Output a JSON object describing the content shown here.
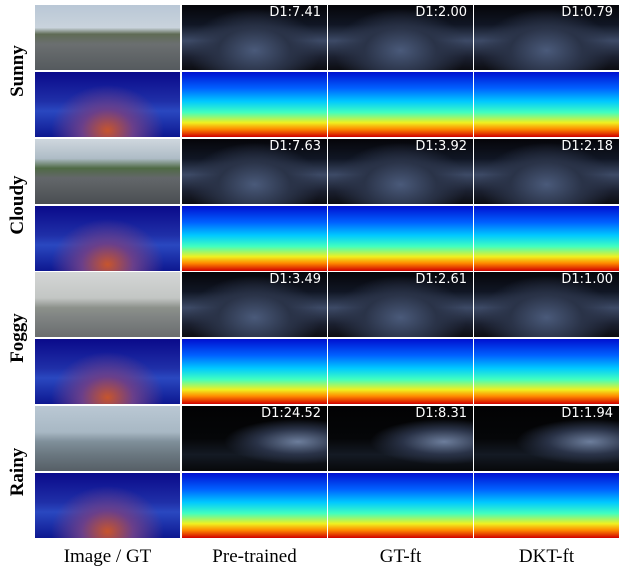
{
  "rows": [
    {
      "condition": "Sunny",
      "d1": [
        "D1:7.41",
        "D1:2.00",
        "D1:0.79"
      ]
    },
    {
      "condition": "Cloudy",
      "d1": [
        "D1:7.63",
        "D1:3.92",
        "D1:2.18"
      ]
    },
    {
      "condition": "Foggy",
      "d1": [
        "D1:3.49",
        "D1:2.61",
        "D1:1.00"
      ]
    },
    {
      "condition": "Rainy",
      "d1": [
        "D1:24.52",
        "D1:8.31",
        "D1:1.94"
      ]
    }
  ],
  "columns": [
    "Image / GT",
    "Pre-trained",
    "GT-ft",
    "DKT-ft"
  ]
}
